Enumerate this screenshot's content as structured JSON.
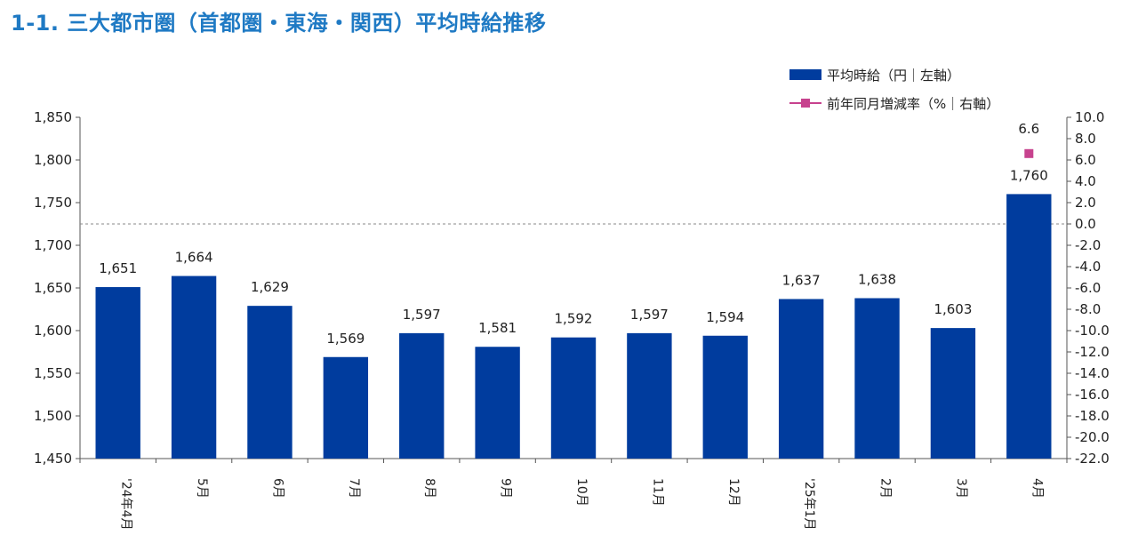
{
  "title": "1-1. 三大都市圏（首都圏・東海・関西）平均時給推移",
  "colors": {
    "title": "#1f7ac4",
    "bar": "#003c9e",
    "marker": "#c7428e",
    "axis": "#555555",
    "zero_line": "#888888"
  },
  "legend": {
    "bar_label": "平均時給（円｜左軸）",
    "line_label": "前年同月増減率（%｜右軸）"
  },
  "chart_data": {
    "type": "bar",
    "categories": [
      "'24年4月",
      "5月",
      "6月",
      "7月",
      "8月",
      "9月",
      "10月",
      "11月",
      "12月",
      "'25年1月",
      "2月",
      "3月",
      "4月"
    ],
    "series": [
      {
        "name": "平均時給（円｜左軸）",
        "type": "bar",
        "axis": "left",
        "values": [
          1651,
          1664,
          1629,
          1569,
          1597,
          1581,
          1592,
          1597,
          1594,
          1637,
          1638,
          1603,
          1760
        ],
        "labels": [
          "1,651",
          "1,664",
          "1,629",
          "1,569",
          "1,597",
          "1,581",
          "1,592",
          "1,597",
          "1,594",
          "1,637",
          "1,638",
          "1,603",
          "1,760"
        ]
      },
      {
        "name": "前年同月増減率（%｜右軸）",
        "type": "line-marker",
        "axis": "right",
        "values": [
          null,
          null,
          null,
          null,
          null,
          null,
          null,
          null,
          null,
          null,
          null,
          null,
          6.6
        ],
        "labels": [
          "",
          "",
          "",
          "",
          "",
          "",
          "",
          "",
          "",
          "",
          "",
          "",
          "6.6"
        ]
      }
    ],
    "y_left": {
      "range": [
        1450,
        1850
      ],
      "ticks": [
        1850,
        1800,
        1750,
        1700,
        1650,
        1600,
        1550,
        1500,
        1450
      ],
      "tick_labels": [
        "1,850",
        "1,800",
        "1,750",
        "1,700",
        "1,650",
        "1,600",
        "1,550",
        "1,500",
        "1,450"
      ]
    },
    "y_right": {
      "range": [
        -22,
        10
      ],
      "ticks": [
        10,
        8,
        6,
        4,
        2,
        0,
        -2,
        -4,
        -6,
        -8,
        -10,
        -12,
        -14,
        -16,
        -18,
        -20,
        -22
      ],
      "tick_labels": [
        "10.0",
        "8.0",
        "6.0",
        "4.0",
        "2.0",
        "0.0",
        "-2.0",
        "-4.0",
        "-6.0",
        "-8.0",
        "-10.0",
        "-12.0",
        "-14.0",
        "-16.0",
        "-18.0",
        "-20.0",
        "-22.0"
      ]
    },
    "zero_line": "dashed",
    "legend_position": "top-right",
    "grid": false
  }
}
